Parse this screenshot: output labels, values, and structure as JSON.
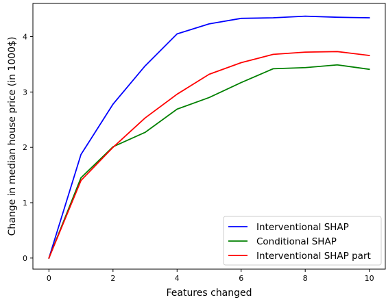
{
  "chart_data": {
    "type": "line",
    "xlabel": "Features changed",
    "ylabel": "Change in median house price (in 1000$)",
    "xlim": [
      -0.5,
      10.5
    ],
    "ylim": [
      -0.2,
      4.6
    ],
    "xticks": [
      "0",
      "2",
      "4",
      "6",
      "8",
      "10"
    ],
    "yticks": [
      "0",
      "1",
      "2",
      "3",
      "4"
    ],
    "grid": false,
    "legend_position": "bottom-right",
    "x": [
      0,
      1,
      2,
      3,
      4,
      5,
      6,
      7,
      8,
      9,
      10
    ],
    "series": [
      {
        "name": "Interventional SHAP",
        "color": "#0000ff",
        "values": [
          0.0,
          1.87,
          2.78,
          3.47,
          4.05,
          4.23,
          4.33,
          4.34,
          4.37,
          4.35,
          4.34
        ]
      },
      {
        "name": "Conditional SHAP",
        "color": "#008000",
        "values": [
          0.0,
          1.45,
          2.01,
          2.27,
          2.69,
          2.9,
          3.17,
          3.42,
          3.44,
          3.49,
          3.41
        ]
      },
      {
        "name": "Interventional SHAP part",
        "color": "#ff0000",
        "values": [
          0.0,
          1.4,
          2.0,
          2.53,
          2.96,
          3.32,
          3.53,
          3.68,
          3.72,
          3.73,
          3.66
        ]
      }
    ]
  }
}
